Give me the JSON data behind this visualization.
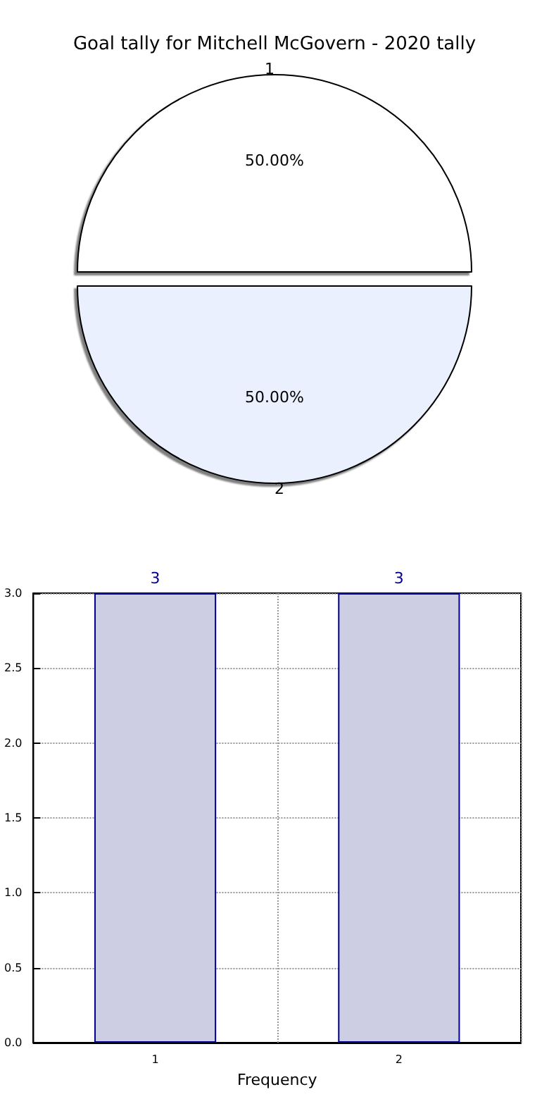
{
  "chart_data": [
    {
      "type": "pie",
      "title": "Goal tally for Mitchell McGovern - 2020 tally",
      "categories": [
        "1",
        "2"
      ],
      "values": [
        50,
        50
      ],
      "colors": [
        "#ffffff",
        "#eaf0fe"
      ],
      "value_labels": [
        "50.00%",
        "50.00%"
      ],
      "legend": false
    },
    {
      "type": "bar",
      "categories": [
        "1",
        "2"
      ],
      "values": [
        3,
        3
      ],
      "color": "#cdcde4",
      "xlabel": "Frequency",
      "ylim": [
        0,
        3
      ],
      "yticks": [
        {
          "value": 0,
          "label": "0.0"
        },
        {
          "value": 0.5,
          "label": "0.5"
        },
        {
          "value": 1,
          "label": "1.0"
        },
        {
          "value": 1.5,
          "label": "1.5"
        },
        {
          "value": 2,
          "label": "2.0"
        },
        {
          "value": 2.5,
          "label": "2.5"
        },
        {
          "value": 3,
          "label": "3.0"
        }
      ],
      "grid": true,
      "data_labels": true,
      "legend": false
    }
  ]
}
